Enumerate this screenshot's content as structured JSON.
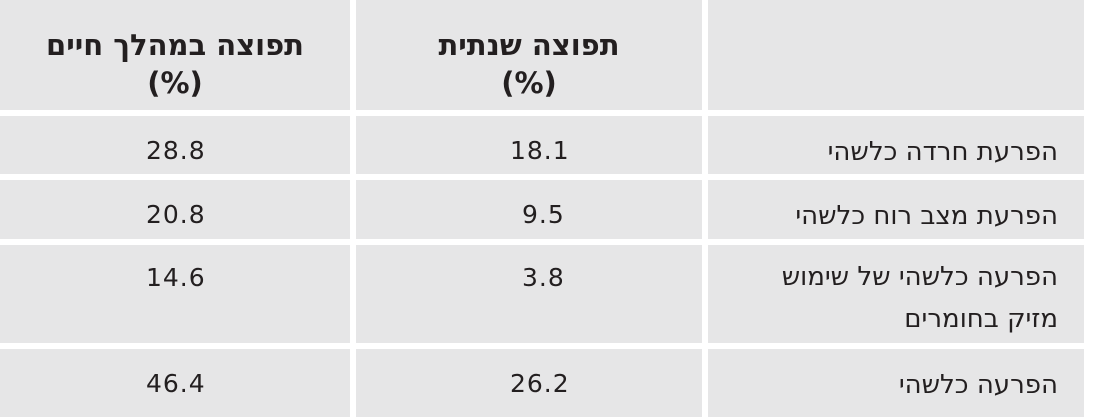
{
  "header": {
    "col_lifetime": "תפוצה במהלך חיים",
    "col_lifetime_unit": "(%)",
    "col_annual": "תפוצה שנתית",
    "col_annual_unit": "(%)",
    "col_label": ""
  },
  "rows": [
    {
      "label_line1": "הפרעת חרדה כלשהי",
      "label_line2": "",
      "annual": "18.1",
      "lifetime": "28.8"
    },
    {
      "label_line1": "הפרעת מצב רוח כלשהי",
      "label_line2": "",
      "annual": "9.5",
      "lifetime": "20.8"
    },
    {
      "label_line1": "הפרעה כלשהי של שימוש",
      "label_line2": "מזיק בחומרים",
      "annual": "3.8",
      "lifetime": "14.6"
    },
    {
      "label_line1": "הפרעה כלשהי",
      "label_line2": "",
      "annual": "26.2",
      "lifetime": "46.4"
    }
  ],
  "chart_data": {
    "type": "table",
    "columns": [
      "",
      "תפוצה שנתית (%)",
      "תפוצה במהלך חיים (%)"
    ],
    "rows": [
      [
        "הפרעת חרדה כלשהי",
        18.1,
        28.8
      ],
      [
        "הפרעת מצב רוח כלשהי",
        9.5,
        20.8
      ],
      [
        "הפרעה כלשהי של שימוש מזיק בחומרים",
        3.8,
        14.6
      ],
      [
        "הפרעה כלשהי",
        26.2,
        46.4
      ]
    ]
  }
}
